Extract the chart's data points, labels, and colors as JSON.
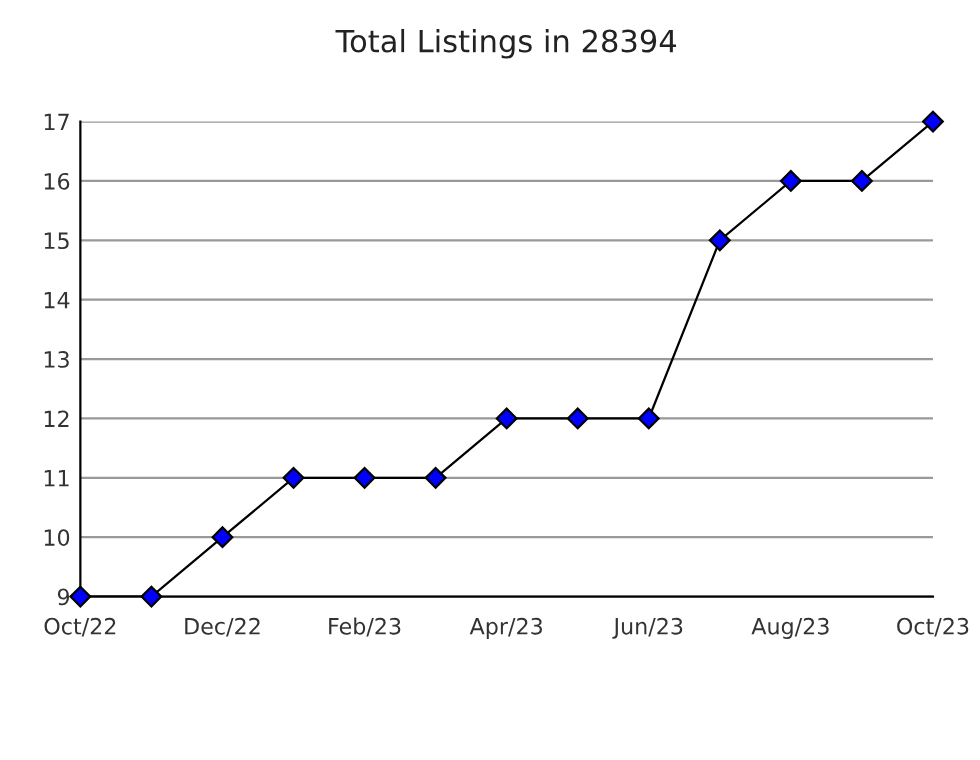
{
  "chart_data": {
    "type": "line",
    "title": "Total Listings in 28394",
    "categories": [
      "Oct/22",
      null,
      "Dec/22",
      null,
      "Feb/23",
      null,
      "Apr/23",
      null,
      "Jun/23",
      null,
      "Aug/23",
      null,
      "Oct/23"
    ],
    "series": [
      {
        "color": "#0000ff",
        "values": [
          9,
          9,
          10,
          11,
          11,
          11,
          12,
          12,
          12,
          15,
          16,
          16,
          17
        ]
      }
    ],
    "ylim": [
      9,
      17
    ],
    "yticks": [
      9,
      10,
      11,
      12,
      13,
      14,
      15,
      16,
      17
    ],
    "grid": "y",
    "marker": "diamond",
    "line_style": "solid",
    "legend": false
  }
}
